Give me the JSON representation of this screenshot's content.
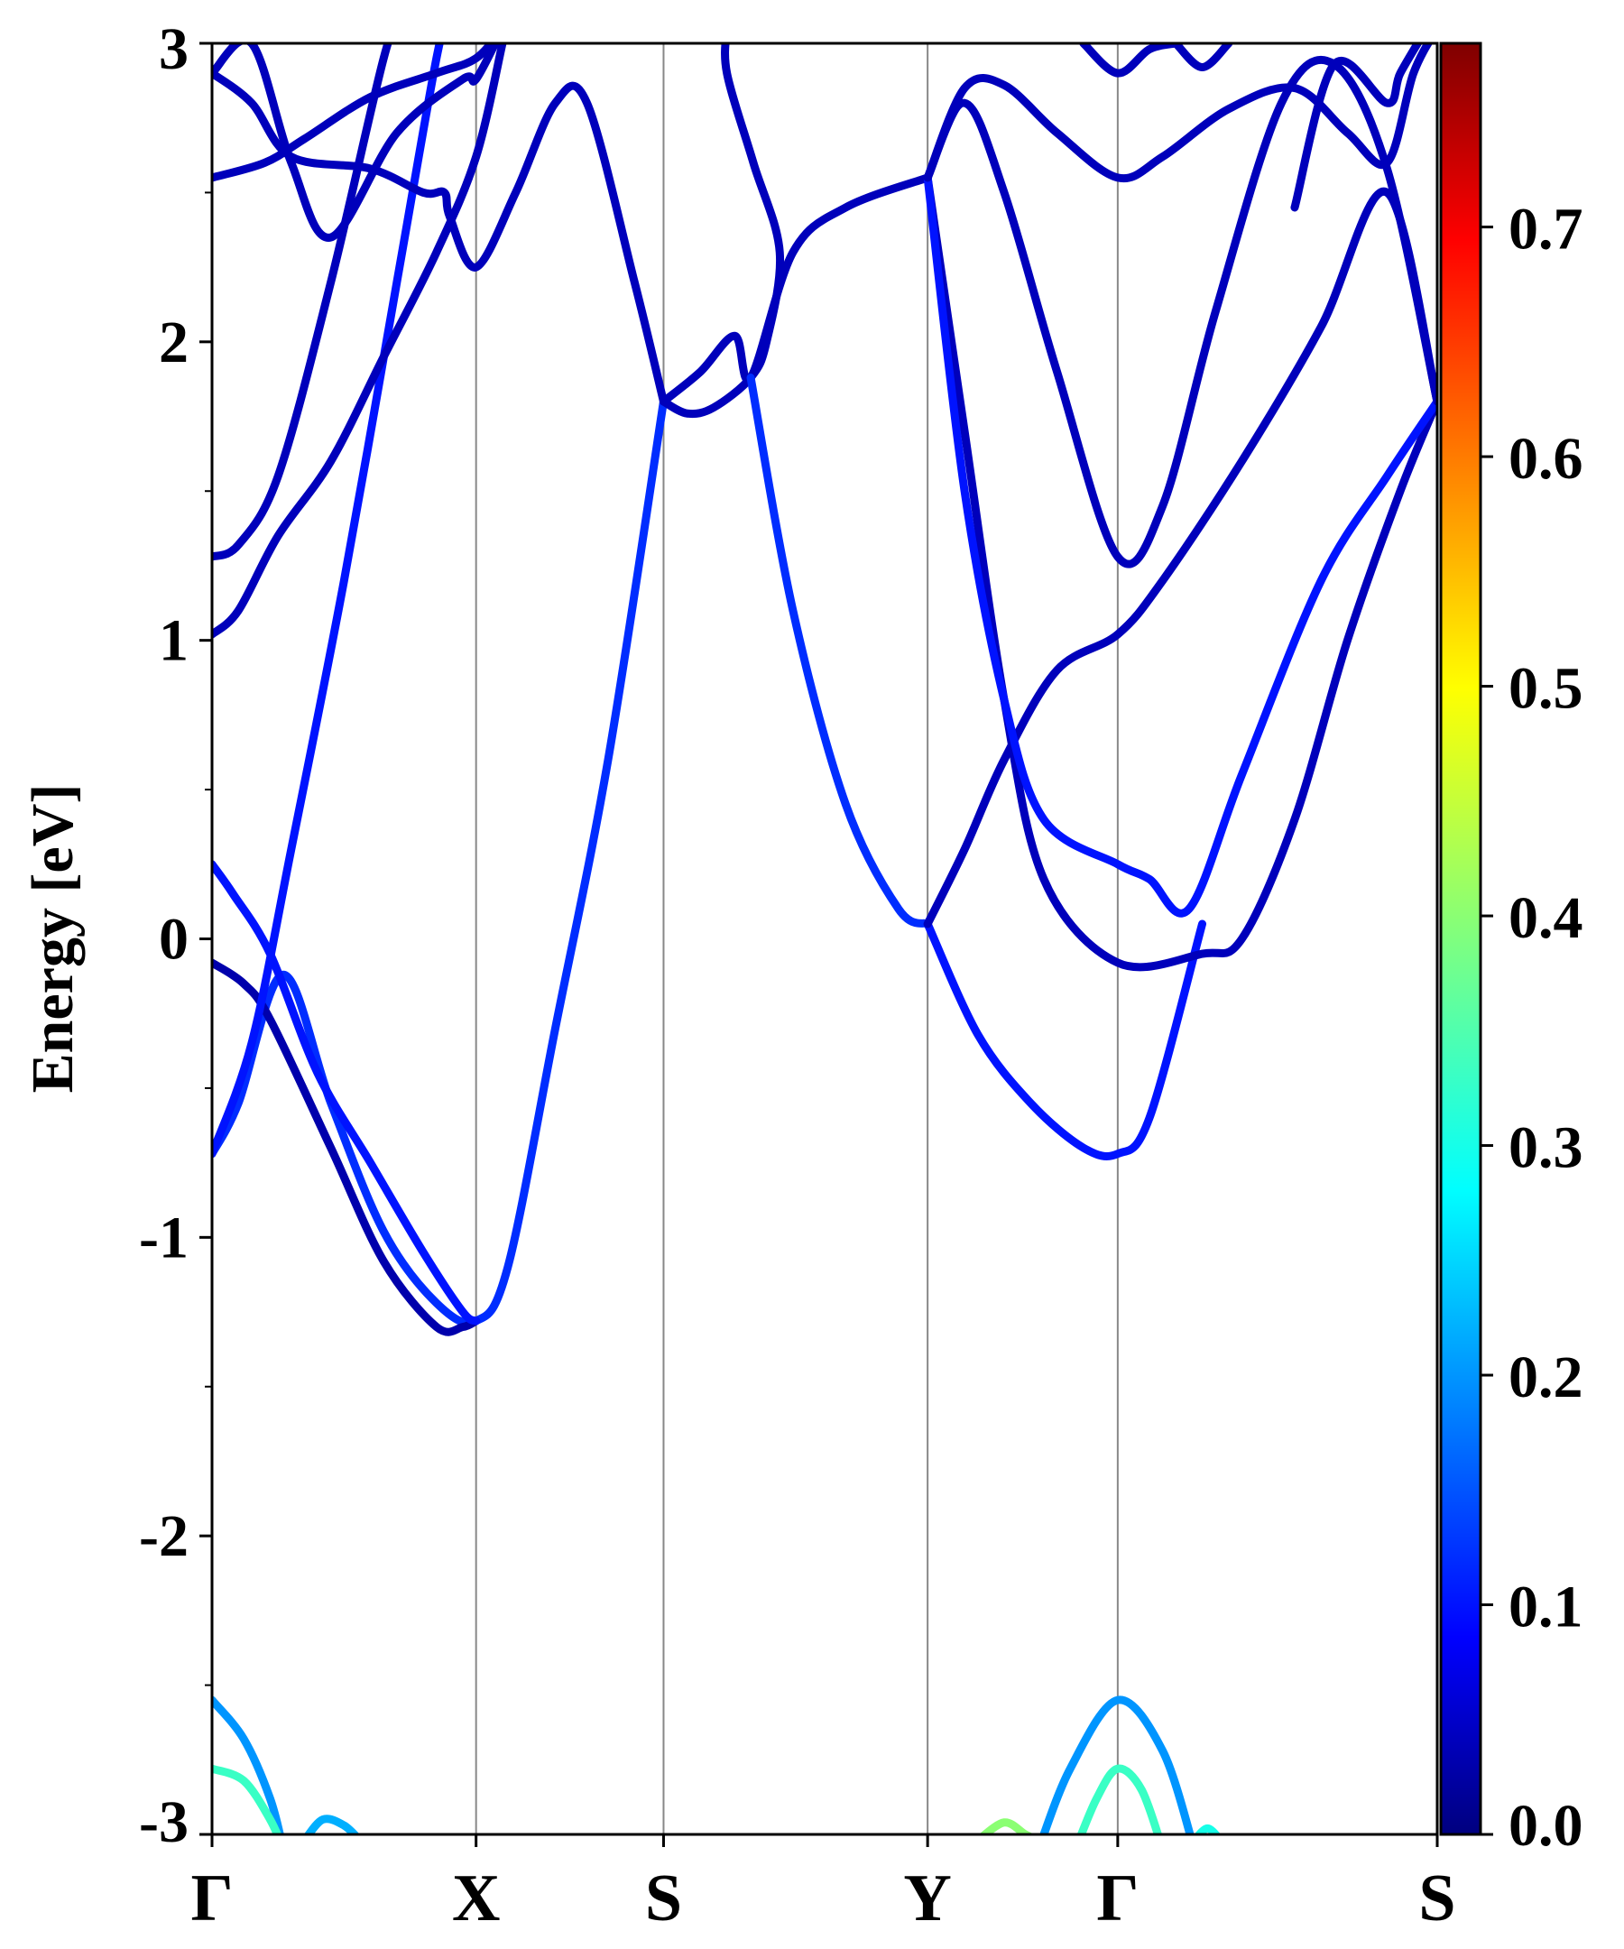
{
  "chart_data": {
    "type": "line",
    "ylabel": "Energy [eV]",
    "ylim": [
      -3,
      3
    ],
    "yticks": [
      "3",
      "2",
      "1",
      "0",
      "-1",
      "-2",
      "-3"
    ],
    "ytick_values": [
      3,
      2,
      1,
      0,
      -1,
      -2,
      -3
    ],
    "xlim": [
      0,
      4.64
    ],
    "kpoints": [
      {
        "label": "Γ",
        "x": 0
      },
      {
        "label": "X",
        "x": 1.0
      },
      {
        "label": "S",
        "x": 1.71
      },
      {
        "label": "Y",
        "x": 2.71
      },
      {
        "label": "Γ",
        "x": 3.43
      },
      {
        "label": "S",
        "x": 4.64
      }
    ],
    "colorbar": {
      "colormap": "jet",
      "range": [
        0.0,
        0.78
      ],
      "ticks": [
        "0.0",
        "0.1",
        "0.2",
        "0.3",
        "0.4",
        "0.5",
        "0.6",
        "0.7"
      ],
      "tick_values": [
        0.0,
        0.1,
        0.2,
        0.3,
        0.4,
        0.5,
        0.6,
        0.7
      ]
    },
    "grid": "vertical lines at high-symmetry points",
    "bands": [
      {
        "weight": 0.12,
        "points": [
          [
            0,
            -0.72
          ],
          [
            0.1,
            -0.55
          ],
          [
            0.27,
            -0.12
          ],
          [
            0.45,
            -0.55
          ],
          [
            0.65,
            -0.98
          ],
          [
            0.85,
            -1.22
          ],
          [
            1.0,
            -1.28
          ],
          [
            1.12,
            -1.1
          ],
          [
            1.3,
            -0.3
          ],
          [
            1.5,
            0.6
          ],
          [
            1.71,
            1.8
          ]
        ]
      },
      {
        "weight": 0.03,
        "points": [
          [
            0,
            -0.08
          ],
          [
            0.12,
            -0.15
          ],
          [
            0.22,
            -0.27
          ],
          [
            0.45,
            -0.7
          ],
          [
            0.65,
            -1.08
          ],
          [
            0.85,
            -1.3
          ],
          [
            0.95,
            -1.3
          ],
          [
            1.0,
            -1.28
          ]
        ]
      },
      {
        "weight": 0.1,
        "points": [
          [
            0,
            0.25
          ],
          [
            0.08,
            0.15
          ],
          [
            0.22,
            -0.05
          ],
          [
            0.4,
            -0.45
          ],
          [
            0.6,
            -0.75
          ],
          [
            0.8,
            -1.05
          ],
          [
            0.95,
            -1.25
          ],
          [
            1.0,
            -1.28
          ]
        ]
      },
      {
        "weight": 0.1,
        "points": [
          [
            0,
            -0.72
          ],
          [
            0.15,
            -0.35
          ],
          [
            0.3,
            0.3
          ],
          [
            0.5,
            1.2
          ],
          [
            0.7,
            2.2
          ],
          [
            0.85,
            2.95
          ],
          [
            0.9,
            3.1
          ]
        ]
      },
      {
        "weight": 0.04,
        "points": [
          [
            0,
            1.02
          ],
          [
            0.1,
            1.1
          ],
          [
            0.25,
            1.35
          ],
          [
            0.45,
            1.6
          ],
          [
            0.65,
            1.95
          ],
          [
            0.85,
            2.3
          ],
          [
            1.0,
            2.62
          ],
          [
            1.1,
            3.0
          ]
        ]
      },
      {
        "weight": 0.04,
        "points": [
          [
            0,
            1.28
          ],
          [
            0.1,
            1.32
          ],
          [
            0.25,
            1.55
          ],
          [
            0.45,
            2.2
          ],
          [
            0.65,
            2.95
          ],
          [
            0.72,
            3.1
          ]
        ]
      },
      {
        "weight": 0.04,
        "points": [
          [
            0,
            2.55
          ],
          [
            0.2,
            2.6
          ],
          [
            0.35,
            2.68
          ],
          [
            0.6,
            2.82
          ],
          [
            0.85,
            2.9
          ],
          [
            1.0,
            2.95
          ],
          [
            1.1,
            3.05
          ]
        ]
      },
      {
        "weight": 0.04,
        "points": [
          [
            0,
            2.9
          ],
          [
            0.15,
            2.8
          ],
          [
            0.3,
            2.62
          ],
          [
            0.6,
            2.58
          ],
          [
            0.8,
            2.5
          ],
          [
            0.88,
            2.5
          ],
          [
            0.9,
            2.42
          ],
          [
            1.0,
            2.25
          ],
          [
            1.15,
            2.5
          ],
          [
            1.3,
            2.8
          ],
          [
            1.42,
            2.8
          ],
          [
            1.6,
            2.2
          ],
          [
            1.71,
            1.8
          ]
        ]
      },
      {
        "weight": 0.04,
        "points": [
          [
            0,
            2.9
          ],
          [
            0.15,
            3.0
          ],
          [
            0.3,
            2.6
          ],
          [
            0.45,
            2.35
          ],
          [
            0.7,
            2.7
          ],
          [
            0.95,
            2.88
          ],
          [
            1.0,
            2.88
          ],
          [
            1.1,
            3.05
          ]
        ]
      },
      {
        "weight": 0.04,
        "points": [
          [
            1.71,
            1.8
          ],
          [
            1.85,
            1.9
          ],
          [
            1.98,
            2.02
          ],
          [
            2.04,
            1.88
          ],
          [
            2.2,
            2.3
          ],
          [
            2.4,
            2.45
          ],
          [
            2.71,
            2.55
          ]
        ]
      },
      {
        "weight": 0.04,
        "points": [
          [
            1.71,
            1.8
          ],
          [
            1.8,
            1.76
          ],
          [
            1.9,
            1.78
          ],
          [
            2.04,
            1.88
          ],
          [
            2.1,
            2.0
          ],
          [
            2.15,
            2.3
          ],
          [
            2.05,
            2.6
          ],
          [
            1.95,
            2.9
          ],
          [
            1.95,
            3.05
          ]
        ]
      },
      {
        "weight": 0.12,
        "points": [
          [
            2.04,
            1.88
          ],
          [
            2.2,
            1.1
          ],
          [
            2.4,
            0.45
          ],
          [
            2.6,
            0.1
          ],
          [
            2.71,
            0.05
          ]
        ]
      },
      {
        "weight": 0.1,
        "points": [
          [
            2.71,
            0.05
          ],
          [
            2.9,
            -0.32
          ],
          [
            3.1,
            -0.55
          ],
          [
            3.3,
            -0.7
          ],
          [
            3.43,
            -0.72
          ],
          [
            3.55,
            -0.6
          ],
          [
            3.75,
            0.05
          ]
        ]
      },
      {
        "weight": 0.04,
        "points": [
          [
            2.71,
            0.05
          ],
          [
            2.85,
            0.3
          ],
          [
            3.0,
            0.6
          ],
          [
            3.2,
            0.9
          ],
          [
            3.43,
            1.02
          ],
          [
            3.6,
            1.2
          ],
          [
            3.9,
            1.6
          ],
          [
            4.2,
            2.05
          ],
          [
            4.45,
            2.5
          ],
          [
            4.64,
            1.8
          ]
        ]
      },
      {
        "weight": 0.04,
        "points": [
          [
            2.71,
            2.55
          ],
          [
            2.85,
            1.7
          ],
          [
            3.0,
            0.8
          ],
          [
            3.15,
            0.2
          ],
          [
            3.43,
            -0.08
          ],
          [
            3.75,
            -0.05
          ],
          [
            3.9,
            0.0
          ],
          [
            4.1,
            0.4
          ],
          [
            4.3,
            1.0
          ],
          [
            4.5,
            1.5
          ],
          [
            4.64,
            1.8
          ]
        ]
      },
      {
        "weight": 0.1,
        "points": [
          [
            2.71,
            2.55
          ],
          [
            2.85,
            1.5
          ],
          [
            3.0,
            0.8
          ],
          [
            3.15,
            0.4
          ],
          [
            3.43,
            0.25
          ],
          [
            3.55,
            0.2
          ],
          [
            3.7,
            0.1
          ],
          [
            3.9,
            0.55
          ],
          [
            4.2,
            1.2
          ],
          [
            4.45,
            1.55
          ],
          [
            4.64,
            1.8
          ]
        ]
      },
      {
        "weight": 0.04,
        "points": [
          [
            2.71,
            2.55
          ],
          [
            2.85,
            2.8
          ],
          [
            3.0,
            2.5
          ],
          [
            3.2,
            1.9
          ],
          [
            3.43,
            1.28
          ],
          [
            3.6,
            1.45
          ],
          [
            3.8,
            2.1
          ],
          [
            4.05,
            2.8
          ],
          [
            4.25,
            2.93
          ],
          [
            4.45,
            2.58
          ],
          [
            4.64,
            1.8
          ]
        ]
      },
      {
        "weight": 0.04,
        "points": [
          [
            2.71,
            2.55
          ],
          [
            2.85,
            2.85
          ],
          [
            3.0,
            2.86
          ],
          [
            3.2,
            2.7
          ],
          [
            3.43,
            2.55
          ],
          [
            3.6,
            2.62
          ],
          [
            3.85,
            2.78
          ],
          [
            4.1,
            2.85
          ],
          [
            4.3,
            2.7
          ],
          [
            4.45,
            2.6
          ],
          [
            4.55,
            2.9
          ],
          [
            4.64,
            3.05
          ]
        ]
      },
      {
        "weight": 0.04,
        "points": [
          [
            3.3,
            3.0
          ],
          [
            3.43,
            2.9
          ],
          [
            3.55,
            2.98
          ],
          [
            3.65,
            3.0
          ]
        ]
      },
      {
        "weight": 0.04,
        "points": [
          [
            3.65,
            3.0
          ],
          [
            3.75,
            2.92
          ],
          [
            3.85,
            3.0
          ]
        ]
      },
      {
        "weight": 0.04,
        "points": [
          [
            4.1,
            2.45
          ],
          [
            4.25,
            2.93
          ],
          [
            4.45,
            2.8
          ],
          [
            4.5,
            2.9
          ],
          [
            4.6,
            3.05
          ]
        ]
      },
      {
        "weight": 0.2,
        "points": [
          [
            0,
            -2.55
          ],
          [
            0.12,
            -2.68
          ],
          [
            0.22,
            -2.88
          ],
          [
            0.27,
            -3.05
          ]
        ]
      },
      {
        "weight": 0.33,
        "points": [
          [
            0,
            -2.78
          ],
          [
            0.12,
            -2.82
          ],
          [
            0.22,
            -2.95
          ],
          [
            0.27,
            -3.05
          ]
        ]
      },
      {
        "weight": 0.22,
        "points": [
          [
            0.35,
            -3.02
          ],
          [
            0.42,
            -2.95
          ],
          [
            0.5,
            -2.97
          ],
          [
            0.56,
            -3.02
          ]
        ]
      },
      {
        "weight": 0.4,
        "points": [
          [
            2.9,
            -3.02
          ],
          [
            3.0,
            -2.96
          ],
          [
            3.08,
            -3.0
          ],
          [
            3.13,
            -3.02
          ]
        ]
      },
      {
        "weight": 0.2,
        "points": [
          [
            3.13,
            -3.05
          ],
          [
            3.25,
            -2.78
          ],
          [
            3.43,
            -2.55
          ],
          [
            3.6,
            -2.72
          ],
          [
            3.72,
            -3.05
          ]
        ]
      },
      {
        "weight": 0.33,
        "points": [
          [
            3.27,
            -3.05
          ],
          [
            3.35,
            -2.88
          ],
          [
            3.43,
            -2.78
          ],
          [
            3.52,
            -2.85
          ],
          [
            3.6,
            -3.05
          ]
        ]
      },
      {
        "weight": 0.3,
        "points": [
          [
            3.72,
            -3.02
          ],
          [
            3.77,
            -2.98
          ],
          [
            3.82,
            -3.02
          ]
        ]
      }
    ]
  }
}
